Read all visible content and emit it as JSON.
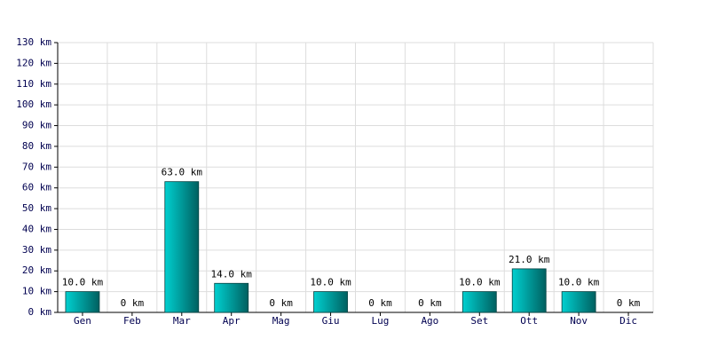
{
  "chart_data": {
    "type": "bar",
    "categories": [
      "Gen",
      "Feb",
      "Mar",
      "Apr",
      "Mag",
      "Giu",
      "Lug",
      "Ago",
      "Set",
      "Ott",
      "Nov",
      "Dic"
    ],
    "values": [
      10,
      0,
      63,
      14,
      0,
      10,
      0,
      0,
      10,
      21,
      10,
      0
    ],
    "value_labels": [
      "10.0 km",
      "0 km",
      "63.0 km",
      "14.0 km",
      "0 km",
      "10.0 km",
      "0 km",
      "0 km",
      "10.0 km",
      "21.0 km",
      "10.0 km",
      "0 km"
    ],
    "color": "#00d0d0",
    "ylim": [
      0,
      130
    ],
    "yticks": [
      {
        "value": 0,
        "label": "0 km"
      },
      {
        "value": 10,
        "label": "10 km"
      },
      {
        "value": 20,
        "label": "20 km"
      },
      {
        "value": 30,
        "label": "30 km"
      },
      {
        "value": 40,
        "label": "40 km"
      },
      {
        "value": 50,
        "label": "50 km"
      },
      {
        "value": 60,
        "label": "60 km"
      },
      {
        "value": 70,
        "label": "70 km"
      },
      {
        "value": 80,
        "label": "80 km"
      },
      {
        "value": 90,
        "label": "90 km"
      },
      {
        "value": 100,
        "label": "100 km"
      },
      {
        "value": 110,
        "label": "110 km"
      },
      {
        "value": 120,
        "label": "120 km"
      },
      {
        "value": 130,
        "label": "130 km"
      }
    ],
    "grid": true
  }
}
